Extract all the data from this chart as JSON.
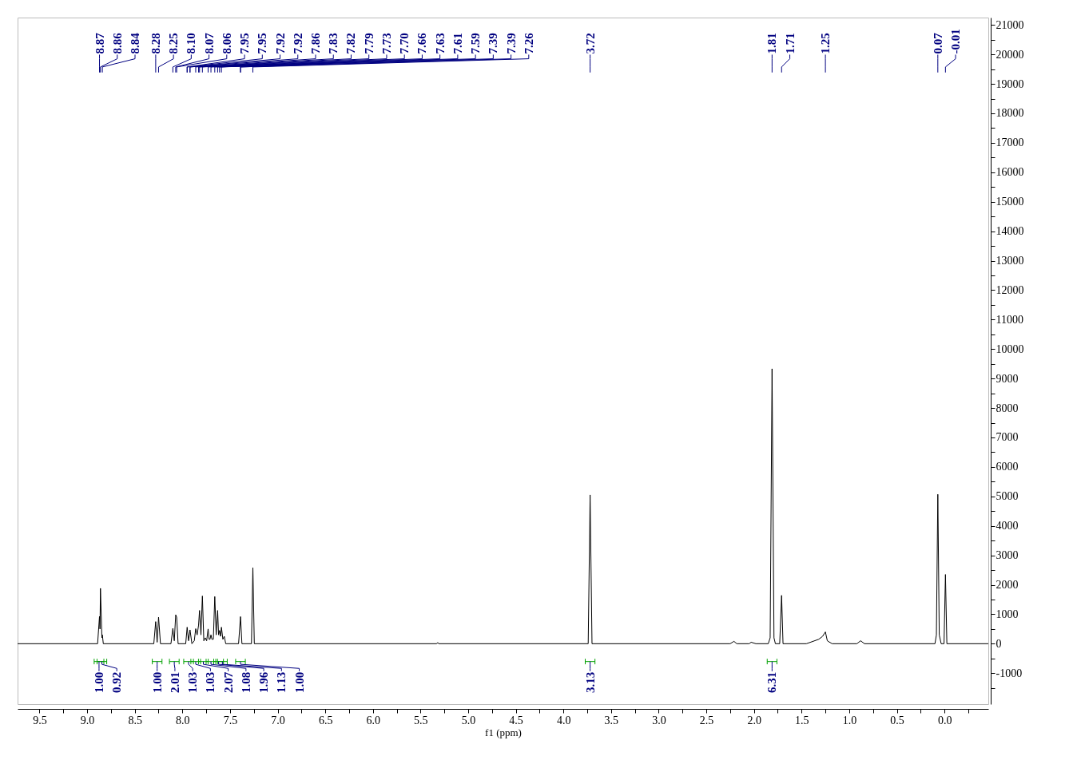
{
  "chart_data": {
    "type": "line",
    "xlabel": "f1 (ppm)",
    "xlim": [
      9.73,
      -0.46
    ],
    "ylim": [
      -2050,
      21250
    ],
    "xticks": [
      {
        "value": 9.5,
        "label": "9.5"
      },
      {
        "value": 9.25,
        "label": null
      },
      {
        "value": 9.0,
        "label": "9.0"
      },
      {
        "value": 8.75,
        "label": null
      },
      {
        "value": 8.5,
        "label": "8.5"
      },
      {
        "value": 8.25,
        "label": null
      },
      {
        "value": 8.0,
        "label": "8.0"
      },
      {
        "value": 7.75,
        "label": null
      },
      {
        "value": 7.5,
        "label": "7.5"
      },
      {
        "value": 7.25,
        "label": null
      },
      {
        "value": 7.0,
        "label": "7.0"
      },
      {
        "value": 6.75,
        "label": null
      },
      {
        "value": 6.5,
        "label": "6.5"
      },
      {
        "value": 6.25,
        "label": null
      },
      {
        "value": 6.0,
        "label": "6.0"
      },
      {
        "value": 5.75,
        "label": null
      },
      {
        "value": 5.5,
        "label": "5.5"
      },
      {
        "value": 5.25,
        "label": null
      },
      {
        "value": 5.0,
        "label": "5.0"
      },
      {
        "value": 4.75,
        "label": null
      },
      {
        "value": 4.5,
        "label": "4.5"
      },
      {
        "value": 4.25,
        "label": null
      },
      {
        "value": 4.0,
        "label": "4.0"
      },
      {
        "value": 3.75,
        "label": null
      },
      {
        "value": 3.5,
        "label": "3.5"
      },
      {
        "value": 3.25,
        "label": null
      },
      {
        "value": 3.0,
        "label": "3.0"
      },
      {
        "value": 2.75,
        "label": null
      },
      {
        "value": 2.5,
        "label": "2.5"
      },
      {
        "value": 2.25,
        "label": null
      },
      {
        "value": 2.0,
        "label": "2.0"
      },
      {
        "value": 1.75,
        "label": null
      },
      {
        "value": 1.5,
        "label": "1.5"
      },
      {
        "value": 1.25,
        "label": null
      },
      {
        "value": 1.0,
        "label": "1.0"
      },
      {
        "value": 0.75,
        "label": null
      },
      {
        "value": 0.5,
        "label": "0.5"
      },
      {
        "value": 0.25,
        "label": null
      },
      {
        "value": 0.0,
        "label": "0.0"
      },
      {
        "value": -0.25,
        "label": null
      }
    ],
    "yticks": [
      {
        "value": -1500,
        "label": null
      },
      -1000,
      {
        "value": -500,
        "label": null
      },
      0,
      {
        "value": 500,
        "label": null
      },
      1000,
      {
        "value": 1500,
        "label": null
      },
      2000,
      {
        "value": 2500,
        "label": null
      },
      3000,
      {
        "value": 3500,
        "label": null
      },
      4000,
      {
        "value": 4500,
        "label": null
      },
      5000,
      {
        "value": 5500,
        "label": null
      },
      6000,
      {
        "value": 6500,
        "label": null
      },
      7000,
      {
        "value": 7500,
        "label": null
      },
      8000,
      {
        "value": 8500,
        "label": null
      },
      9000,
      {
        "value": 9500,
        "label": null
      },
      10000,
      {
        "value": 10500,
        "label": null
      },
      11000,
      {
        "value": 11500,
        "label": null
      },
      12000,
      {
        "value": 12500,
        "label": null
      },
      13000,
      {
        "value": 13500,
        "label": null
      },
      14000,
      {
        "value": 14500,
        "label": null
      },
      15000,
      {
        "value": 15500,
        "label": null
      },
      16000,
      {
        "value": 16500,
        "label": null
      },
      17000,
      {
        "value": 17500,
        "label": null
      },
      18000,
      {
        "value": 18500,
        "label": null
      },
      19000,
      {
        "value": 19500,
        "label": null
      },
      20000,
      {
        "value": 20500,
        "label": null
      },
      21000
    ],
    "series": [
      {
        "color": "#000000",
        "x": [
          9.73,
          8.89,
          8.87,
          8.865,
          8.86,
          8.845,
          8.84,
          8.83,
          8.3,
          8.28,
          8.265,
          8.25,
          8.23,
          8.12,
          8.1,
          8.085,
          8.07,
          8.06,
          8.045,
          7.965,
          7.95,
          7.935,
          7.92,
          7.9,
          7.875,
          7.86,
          7.845,
          7.83,
          7.82,
          7.805,
          7.79,
          7.775,
          7.76,
          7.745,
          7.73,
          7.72,
          7.71,
          7.7,
          7.69,
          7.675,
          7.66,
          7.645,
          7.63,
          7.62,
          7.61,
          7.6,
          7.59,
          7.575,
          7.56,
          7.545,
          7.41,
          7.39,
          7.375,
          7.275,
          7.26,
          7.245,
          5.33,
          5.32,
          5.31,
          3.74,
          3.72,
          3.7,
          2.25,
          2.21,
          2.18,
          2.05,
          2.03,
          1.98,
          1.85,
          1.83,
          1.81,
          1.79,
          1.775,
          1.73,
          1.71,
          1.695,
          1.45,
          1.32,
          1.28,
          1.25,
          1.23,
          1.18,
          0.92,
          0.88,
          0.84,
          0.1,
          0.085,
          0.07,
          0.055,
          0.035,
          0.005,
          -0.01,
          -0.025,
          -0.46
        ],
        "values": [
          0,
          0,
          930,
          500,
          1880,
          200,
          300,
          0,
          0,
          750,
          50,
          900,
          0,
          0,
          520,
          100,
          980,
          900,
          0,
          0,
          560,
          100,
          470,
          0,
          100,
          510,
          300,
          630,
          1130,
          300,
          1620,
          100,
          200,
          100,
          500,
          150,
          150,
          300,
          150,
          150,
          1600,
          300,
          1130,
          300,
          450,
          250,
          560,
          150,
          250,
          0,
          0,
          920,
          0,
          0,
          2580,
          0,
          0,
          40,
          0,
          0,
          5050,
          0,
          0,
          80,
          0,
          0,
          50,
          0,
          0,
          200,
          9330,
          200,
          0,
          0,
          1640,
          0,
          0,
          150,
          250,
          400,
          100,
          0,
          0,
          100,
          0,
          0,
          300,
          5070,
          300,
          0,
          0,
          2350,
          0,
          0
        ]
      }
    ],
    "annotations": [
      {
        "text": "8.87",
        "x": 8.87
      },
      {
        "text": "8.86",
        "x": 8.86
      },
      {
        "text": "8.84",
        "x": 8.84
      },
      {
        "text": "8.28",
        "x": 8.28
      },
      {
        "text": "8.25",
        "x": 8.25
      },
      {
        "text": "8.10",
        "x": 8.1
      },
      {
        "text": "8.07",
        "x": 8.07
      },
      {
        "text": "8.06",
        "x": 8.06
      },
      {
        "text": "7.95",
        "x": 7.95
      },
      {
        "text": "7.95",
        "x": 7.95
      },
      {
        "text": "7.92",
        "x": 7.92
      },
      {
        "text": "7.92",
        "x": 7.92
      },
      {
        "text": "7.86",
        "x": 7.86
      },
      {
        "text": "7.83",
        "x": 7.83
      },
      {
        "text": "7.82",
        "x": 7.82
      },
      {
        "text": "7.79",
        "x": 7.79
      },
      {
        "text": "7.73",
        "x": 7.73
      },
      {
        "text": "7.70",
        "x": 7.7
      },
      {
        "text": "7.66",
        "x": 7.66
      },
      {
        "text": "7.63",
        "x": 7.63
      },
      {
        "text": "7.61",
        "x": 7.61
      },
      {
        "text": "7.59",
        "x": 7.59
      },
      {
        "text": "7.39",
        "x": 7.39
      },
      {
        "text": "7.39",
        "x": 7.39
      },
      {
        "text": "7.26",
        "x": 7.26
      },
      {
        "text": "3.72",
        "x": 3.72
      },
      {
        "text": "1.81",
        "x": 1.81
      },
      {
        "text": "1.71",
        "x": 1.71
      },
      {
        "text": "1.25",
        "x": 1.25
      },
      {
        "text": "0.07",
        "x": 0.07
      },
      {
        "text": "-0.01",
        "x": -0.01
      },
      {
        "text": "1.00",
        "x": 8.875
      },
      {
        "text": "0.92",
        "x": 8.845
      },
      {
        "text": "1.00",
        "x": 8.265
      },
      {
        "text": "2.01",
        "x": 8.085
      },
      {
        "text": "1.03",
        "x": 7.935
      },
      {
        "text": "1.03",
        "x": 7.86
      },
      {
        "text": "2.07",
        "x": 7.78
      },
      {
        "text": "1.08",
        "x": 7.7
      },
      {
        "text": "1.96",
        "x": 7.62
      },
      {
        "text": "1.13",
        "x": 7.58
      },
      {
        "text": "1.00",
        "x": 7.39
      },
      {
        "text": "3.13",
        "x": 3.72
      },
      {
        "text": "6.31",
        "x": 1.81
      }
    ]
  }
}
